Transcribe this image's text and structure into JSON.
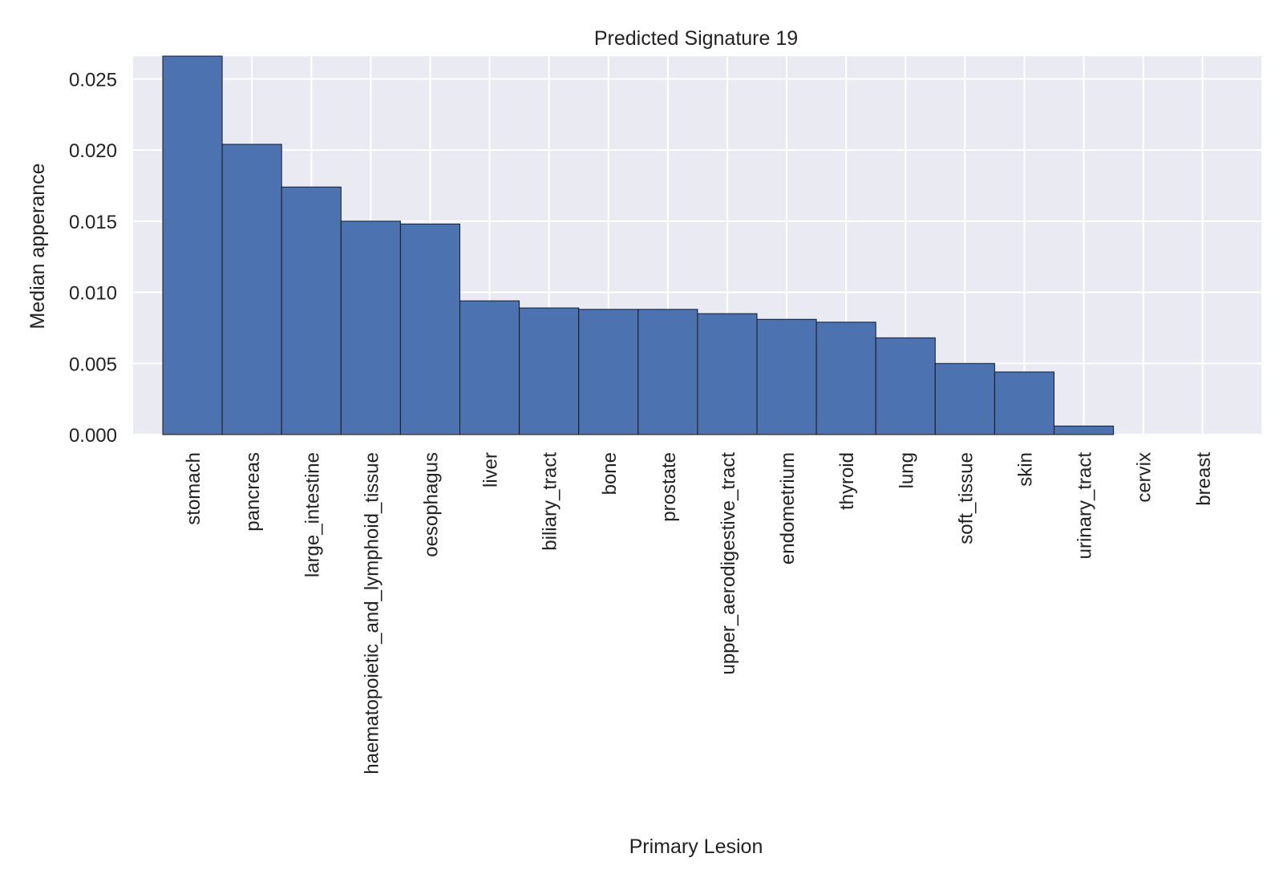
{
  "chart_data": {
    "type": "bar",
    "title": "Predicted Signature 19",
    "xlabel": "Primary Lesion",
    "ylabel": "Median apperance",
    "categories": [
      "stomach",
      "pancreas",
      "large_intestine",
      "haematopoietic_and_lymphoid_tissue",
      "oesophagus",
      "liver",
      "biliary_tract",
      "bone",
      "prostate",
      "upper_aerodigestive_tract",
      "endometrium",
      "thyroid",
      "lung",
      "soft_tissue",
      "skin",
      "urinary_tract",
      "cervix",
      "breast"
    ],
    "values": [
      0.0266,
      0.0204,
      0.0174,
      0.015,
      0.0148,
      0.0094,
      0.0089,
      0.0088,
      0.0088,
      0.0085,
      0.0081,
      0.0079,
      0.0068,
      0.005,
      0.0044,
      0.0006,
      0.0,
      0.0
    ],
    "ylim": [
      0,
      0.0266
    ],
    "yticks": [
      "0.000",
      "0.005",
      "0.010",
      "0.015",
      "0.020",
      "0.025"
    ],
    "grid": true,
    "colors": {
      "bar": "#4c72b0",
      "plot_background": "#eaeaf2",
      "grid": "#ffffff",
      "bar_edge": "#1a1a1a"
    }
  }
}
